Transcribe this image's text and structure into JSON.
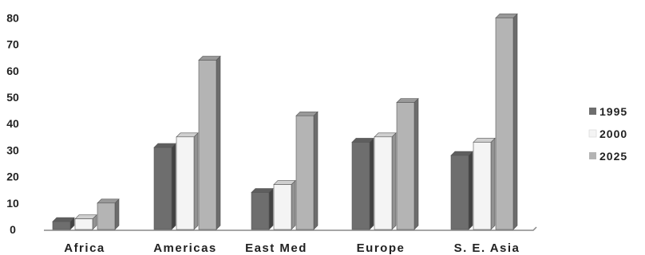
{
  "chart_data": {
    "type": "bar",
    "categories": [
      "Africa",
      "Americas",
      "East Med",
      "Europe",
      "S. E. Asia"
    ],
    "series": [
      {
        "name": "1995",
        "values": [
          3,
          31,
          14,
          33,
          28
        ],
        "color": "#6e6e6e"
      },
      {
        "name": "2000",
        "values": [
          4,
          35,
          17,
          35,
          33
        ],
        "color": "#f4f4f4"
      },
      {
        "name": "2025",
        "values": [
          10,
          64,
          43,
          48,
          80
        ],
        "color": "#b4b4b4"
      }
    ],
    "yticks": [
      0,
      10,
      20,
      30,
      40,
      50,
      60,
      70,
      80
    ],
    "ylim": [
      0,
      80
    ],
    "grid": false,
    "legend_position": "right",
    "style": "3d-bars"
  }
}
